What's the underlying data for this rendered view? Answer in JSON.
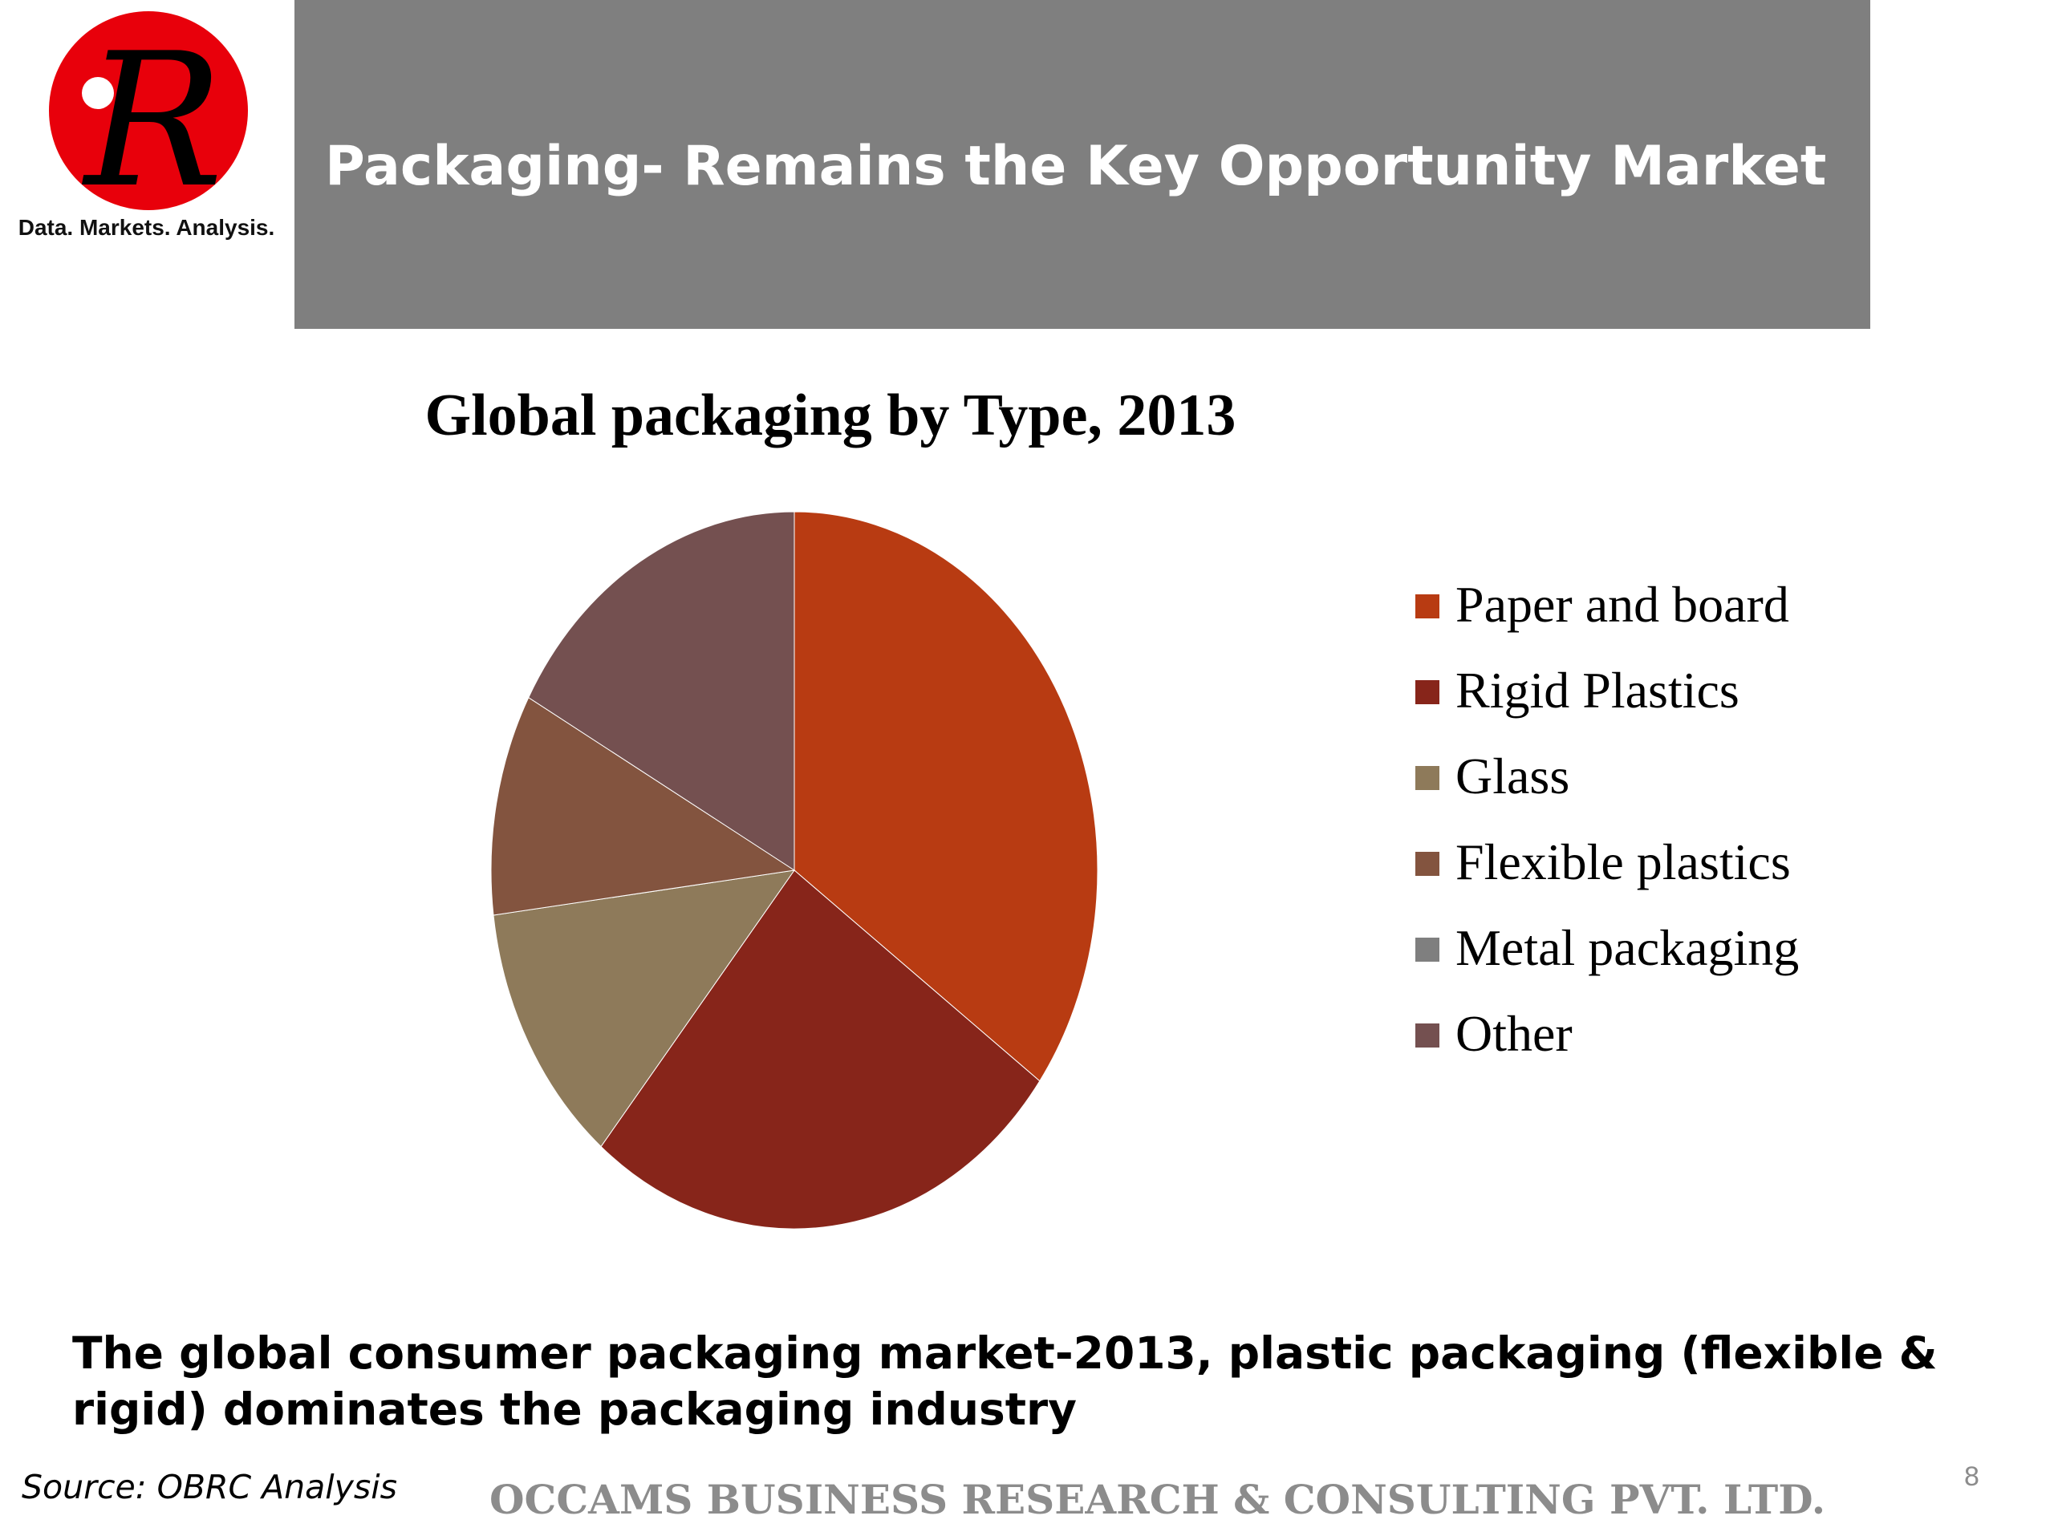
{
  "logo": {
    "letter": "R",
    "tagline": "Data. Markets. Analysis.",
    "circle_color": "#e8000b"
  },
  "header": {
    "title": "Packaging- Remains the Key Opportunity Market"
  },
  "chart_data": {
    "type": "pie",
    "title": "Global packaging by Type, 2013",
    "legend_position": "right",
    "slices": [
      {
        "label": "Paper and board",
        "value": 35,
        "color": "#b83b12"
      },
      {
        "label": "Rigid Plastics",
        "value": 26,
        "color": "#87251a"
      },
      {
        "label": "Glass",
        "value": 12,
        "color": "#8e7a5a"
      },
      {
        "label": "Flexible plastics",
        "value": 10,
        "color": "#83543f"
      },
      {
        "label": "Metal packaging",
        "value": 0,
        "color": "#7f7f7f"
      },
      {
        "label": "Other",
        "value": 17,
        "color": "#745050"
      }
    ]
  },
  "caption": "The global consumer packaging market-2013, plastic packaging (flexible & rigid) dominates the packaging industry",
  "source": "Source: OBRC Analysis",
  "footer": {
    "company": "OCCAMS BUSINESS RESEARCH & CONSULTING PVT. LTD.",
    "page_number": "8"
  }
}
